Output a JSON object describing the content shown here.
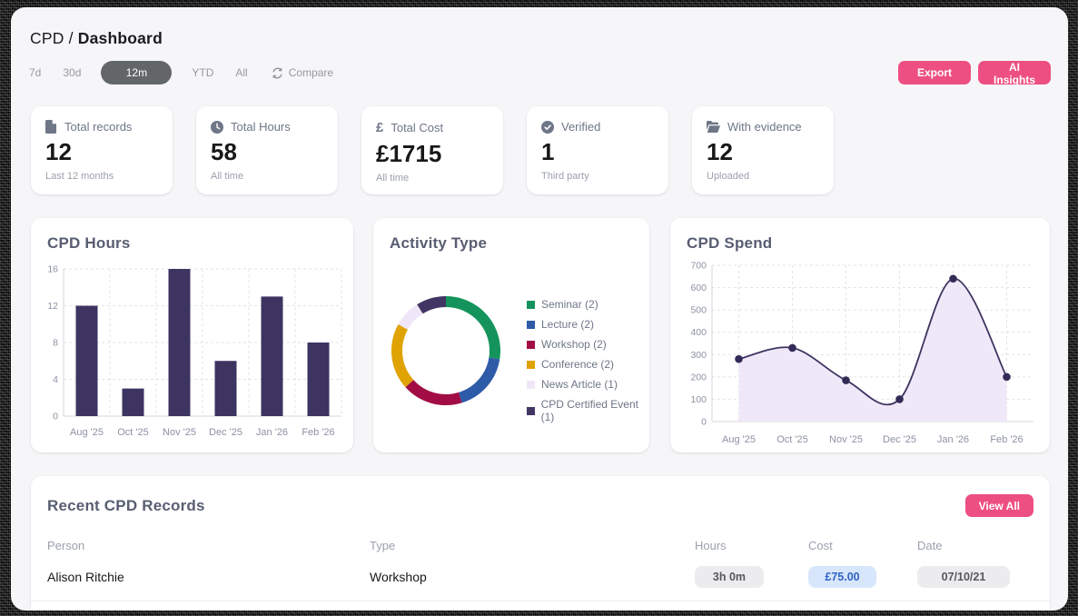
{
  "header": {
    "breadcrumb_root": "CPD",
    "breadcrumb_sep": "/",
    "breadcrumb_current": "Dashboard"
  },
  "filters": {
    "items": [
      {
        "label": "7d",
        "active": false
      },
      {
        "label": "30d",
        "active": false
      },
      {
        "label": "12m",
        "active": true
      },
      {
        "label": "YTD",
        "active": false
      },
      {
        "label": "All",
        "active": false
      }
    ],
    "compare_label": "Compare"
  },
  "actions": {
    "export_label": "Export",
    "ai_insights_label": "AI Insights",
    "accent_color": "#ee4f82"
  },
  "stats": [
    {
      "icon": "file-icon",
      "label": "Total records",
      "value": "12",
      "sub": "Last 12 months"
    },
    {
      "icon": "clock-icon",
      "label": "Total Hours",
      "value": "58",
      "sub": "All time"
    },
    {
      "icon": "pound-icon",
      "label": "Total Cost",
      "value": "£1715",
      "sub": "All time"
    },
    {
      "icon": "verified-icon",
      "label": "Verified",
      "value": "1",
      "sub": "Third party"
    },
    {
      "icon": "folder-icon",
      "label": "With evidence",
      "value": "12",
      "sub": "Uploaded"
    }
  ],
  "chart_data": [
    {
      "type": "bar",
      "title": "CPD Hours",
      "categories": [
        "Aug '25",
        "Oct '25",
        "Nov '25",
        "Dec '25",
        "Jan '26",
        "Feb '26"
      ],
      "values": [
        12,
        3,
        16,
        6,
        13,
        8
      ],
      "xlabel": "",
      "ylabel": "",
      "ylim": [
        0,
        16
      ],
      "yticks": [
        0,
        4,
        8,
        12,
        16
      ],
      "grid": "dashed",
      "bar_color": "#3d3462"
    },
    {
      "type": "pie",
      "title": "Activity Type",
      "donut": true,
      "legend_position": "right",
      "segments": [
        {
          "label": "Seminar (2)",
          "value": 2,
          "sweep_deg": 99,
          "color": "#14945c"
        },
        {
          "label": "Lecture (2)",
          "value": 2,
          "sweep_deg": 64,
          "color": "#2d5ba8"
        },
        {
          "label": "Workshop (2)",
          "value": 2,
          "sweep_deg": 65,
          "color": "#a10d44"
        },
        {
          "label": "Conference (2)",
          "value": 2,
          "sweep_deg": 71,
          "color": "#dfa303"
        },
        {
          "label": "News Article (1)",
          "value": 1,
          "sweep_deg": 29,
          "color": "#efe7f8"
        },
        {
          "label": "CPD Certified Event (1)",
          "value": 1,
          "sweep_deg": 32,
          "color": "#413663"
        }
      ]
    },
    {
      "type": "line",
      "title": "CPD Spend",
      "x": [
        "Aug '25",
        "Oct '25",
        "Nov '25",
        "Dec '25",
        "Jan '26",
        "Feb '26"
      ],
      "values": [
        280,
        330,
        185,
        100,
        640,
        200
      ],
      "xlabel": "",
      "ylabel": "",
      "ylim": [
        0,
        700
      ],
      "yticks": [
        0,
        100,
        200,
        300,
        400,
        500,
        600,
        700
      ],
      "grid": "dashed",
      "line_color": "#3d3462",
      "area_color": "#efe8f8",
      "point_color": "#332b57"
    }
  ],
  "records": {
    "title": "Recent CPD Records",
    "view_all_label": "View All",
    "columns": [
      "Person",
      "Type",
      "Hours",
      "Cost",
      "Date"
    ],
    "rows": [
      {
        "person": "Alison Ritchie",
        "type": "Workshop",
        "hours": "3h 0m",
        "cost": "£75.00",
        "date": "07/10/21"
      }
    ]
  }
}
